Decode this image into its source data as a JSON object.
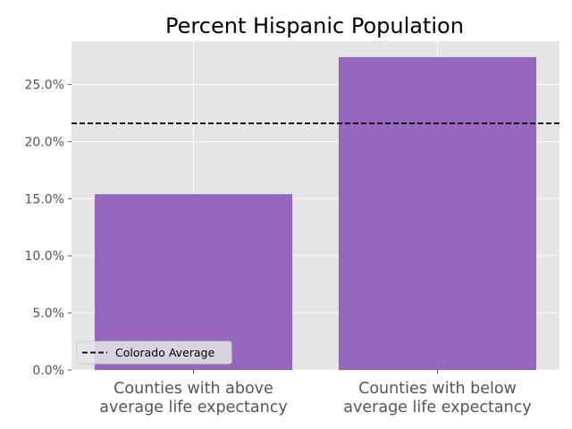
{
  "chart_data": {
    "type": "bar",
    "title": "Percent Hispanic Population",
    "categories": [
      [
        "Counties with above",
        "average life expectancy"
      ],
      [
        "Counties with below",
        "average life expectancy"
      ]
    ],
    "values": [
      15.4,
      27.4
    ],
    "ylim": [
      0,
      28.8
    ],
    "yticks": [
      0,
      5,
      10,
      15,
      20,
      25
    ],
    "ytick_labels": [
      "0.0%",
      "5.0%",
      "10.0%",
      "15.0%",
      "20.0%",
      "25.0%"
    ],
    "reference_line": {
      "label": "Colorado Average",
      "value": 21.6
    },
    "legend": {
      "placement": "lower-left",
      "entries": [
        "Colorado Average"
      ]
    },
    "grid": true,
    "colors": {
      "bar": "#9467bd",
      "plot_bg": "#e5e5e5",
      "grid": "#ffffff",
      "text": "#555555",
      "reference": "#000000"
    }
  }
}
